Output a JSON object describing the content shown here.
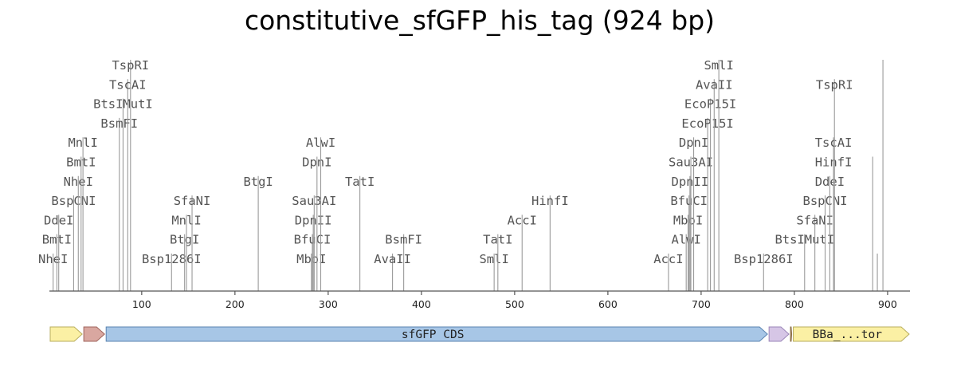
{
  "title": "constitutive_sfGFP_his_tag (924 bp)",
  "axis": {
    "min": 1,
    "max": 924,
    "ticks": [
      100,
      200,
      300,
      400,
      500,
      600,
      700,
      800,
      900
    ]
  },
  "sites": [
    {
      "name": "NheI",
      "pos": 5,
      "level": 0
    },
    {
      "name": "BmtI",
      "pos": 9,
      "level": 1
    },
    {
      "name": "DdeI",
      "pos": 11,
      "level": 2
    },
    {
      "name": "BspCNI",
      "pos": 27,
      "level": 3
    },
    {
      "name": "NheI",
      "pos": 32,
      "level": 4
    },
    {
      "name": "BmtI",
      "pos": 35,
      "level": 5
    },
    {
      "name": "MnlI",
      "pos": 37,
      "level": 6
    },
    {
      "name": "BsmFI",
      "pos": 76,
      "level": 7
    },
    {
      "name": "BtsIMutI",
      "pos": 80,
      "level": 8
    },
    {
      "name": "TscAI",
      "pos": 85,
      "level": 9
    },
    {
      "name": "TspRI",
      "pos": 88,
      "level": 10
    },
    {
      "name": "Bsp1286I",
      "pos": 132,
      "level": 0
    },
    {
      "name": "BtgI",
      "pos": 146,
      "level": 1
    },
    {
      "name": "MnlI",
      "pos": 148,
      "level": 2
    },
    {
      "name": "SfaNI",
      "pos": 154,
      "level": 3
    },
    {
      "name": "BtgI",
      "pos": 225,
      "level": 4
    },
    {
      "name": "MboI",
      "pos": 282,
      "level": 0
    },
    {
      "name": "BfuCI",
      "pos": 283,
      "level": 1
    },
    {
      "name": "DpnII",
      "pos": 284,
      "level": 2
    },
    {
      "name": "Sau3AI",
      "pos": 285,
      "level": 3
    },
    {
      "name": "DpnI",
      "pos": 288,
      "level": 5
    },
    {
      "name": "AlwI",
      "pos": 292,
      "level": 6
    },
    {
      "name": "TatI",
      "pos": 334,
      "level": 4
    },
    {
      "name": "AvaII",
      "pos": 369,
      "level": 0
    },
    {
      "name": "BsmFI",
      "pos": 381,
      "level": 1
    },
    {
      "name": "SmlI",
      "pos": 478,
      "level": 0
    },
    {
      "name": "TatI",
      "pos": 482,
      "level": 1
    },
    {
      "name": "AccI",
      "pos": 508,
      "level": 2
    },
    {
      "name": "HinfI",
      "pos": 538,
      "level": 3
    },
    {
      "name": "AccI",
      "pos": 665,
      "level": 0
    },
    {
      "name": "AlwI",
      "pos": 684,
      "level": 1
    },
    {
      "name": "MboI",
      "pos": 686,
      "level": 2
    },
    {
      "name": "BfuCI",
      "pos": 687,
      "level": 3
    },
    {
      "name": "DpnII",
      "pos": 688,
      "level": 4
    },
    {
      "name": "Sau3AI",
      "pos": 689,
      "level": 5
    },
    {
      "name": "DpnI",
      "pos": 692,
      "level": 6
    },
    {
      "name": "EcoP15I",
      "pos": 707,
      "level": 7
    },
    {
      "name": "EcoP15I",
      "pos": 710,
      "level": 8
    },
    {
      "name": "AvaII",
      "pos": 714,
      "level": 9
    },
    {
      "name": "SmlI",
      "pos": 719,
      "level": 10
    },
    {
      "name": "Bsp1286I",
      "pos": 767,
      "level": 0
    },
    {
      "name": "BtsIMutI",
      "pos": 811,
      "level": 1
    },
    {
      "name": "SfaNI",
      "pos": 822,
      "level": 2
    },
    {
      "name": "BspCNI",
      "pos": 833,
      "level": 3
    },
    {
      "name": "DdeI",
      "pos": 838,
      "level": 4
    },
    {
      "name": "HinfI",
      "pos": 842,
      "level": 5
    },
    {
      "name": "TscAI",
      "pos": 842,
      "level": 6
    },
    {
      "name": "TspRI",
      "pos": 843,
      "level": 9
    },
    {
      "name": "",
      "pos": 884,
      "level": 5
    },
    {
      "name": "",
      "pos": 889,
      "level": 0
    },
    {
      "name": "",
      "pos": 895,
      "level": 10
    }
  ],
  "features": [
    {
      "label": "",
      "start": 1,
      "end": 37,
      "color": "#fbf0a4",
      "stroke": "#b8ae5e",
      "kind": "arrow",
      "name": "feature-promoter-left"
    },
    {
      "label": "",
      "start": 37,
      "end": 61,
      "color": "#d9a7a0",
      "stroke": "#a0645c",
      "kind": "arrow",
      "name": "feature-rbs"
    },
    {
      "label": "sfGFP CDS",
      "start": 61,
      "end": 772,
      "color": "#a7c6e6",
      "stroke": "#5b84b1",
      "kind": "arrow",
      "name": "feature-sfgfp-cds"
    },
    {
      "label": "",
      "start": 772,
      "end": 795,
      "color": "#d6c6e6",
      "stroke": "#9b86b8",
      "kind": "arrow",
      "name": "feature-his-tag"
    },
    {
      "label": "",
      "start": 795,
      "end": 798,
      "color": "#c4a882",
      "stroke": "#8a6d47",
      "kind": "arrow",
      "name": "feature-small-spacer"
    },
    {
      "label": "BBa_...tor",
      "start": 798,
      "end": 924,
      "color": "#fbf0a4",
      "stroke": "#b8ae5e",
      "kind": "arrow",
      "name": "feature-terminator"
    }
  ]
}
